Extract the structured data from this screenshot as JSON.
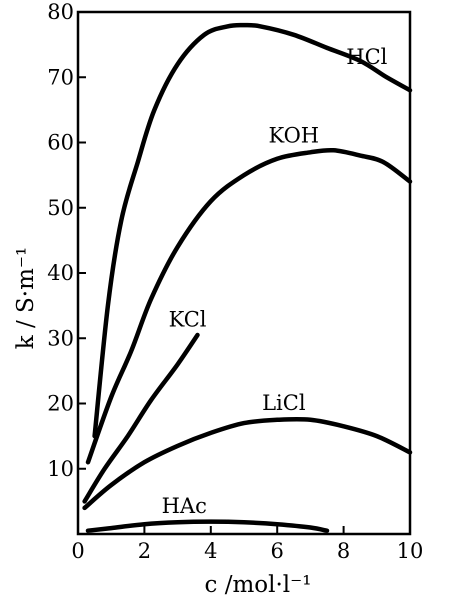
{
  "chart_data": {
    "type": "line",
    "title": "",
    "xlabel": "c /mol·l⁻¹",
    "ylabel": "k / S·m⁻¹",
    "xlim": [
      0,
      10
    ],
    "ylim": [
      0,
      80
    ],
    "x_ticks": [
      "0",
      "2",
      "4",
      "6",
      "8",
      "10"
    ],
    "y_ticks": [
      "10",
      "20",
      "30",
      "40",
      "50",
      "60",
      "70",
      "80"
    ],
    "grid": false,
    "legend": "none (labels placed next to curves)",
    "series": [
      {
        "name": "HCl",
        "points": [
          [
            0.5,
            15
          ],
          [
            0.9,
            35
          ],
          [
            1.3,
            48
          ],
          [
            1.8,
            57
          ],
          [
            2.3,
            65
          ],
          [
            3,
            72
          ],
          [
            3.8,
            76.5
          ],
          [
            4.5,
            77.8
          ],
          [
            5,
            78
          ],
          [
            5.5,
            77.8
          ],
          [
            6.5,
            76.5
          ],
          [
            7.5,
            74.5
          ],
          [
            8.5,
            72.5
          ],
          [
            9.3,
            70
          ],
          [
            10,
            68
          ]
        ]
      },
      {
        "name": "KOH",
        "points": [
          [
            0.3,
            11
          ],
          [
            1,
            21
          ],
          [
            1.6,
            28
          ],
          [
            2.2,
            36
          ],
          [
            3,
            44
          ],
          [
            4,
            51
          ],
          [
            5,
            55
          ],
          [
            6,
            57.5
          ],
          [
            7,
            58.5
          ],
          [
            7.7,
            58.8
          ],
          [
            8.5,
            58
          ],
          [
            9.2,
            57
          ],
          [
            10,
            54
          ]
        ]
      },
      {
        "name": "KCl",
        "points": [
          [
            0.2,
            5
          ],
          [
            0.8,
            10
          ],
          [
            1.5,
            15
          ],
          [
            2.2,
            20.5
          ],
          [
            3,
            26
          ],
          [
            3.6,
            30.5
          ]
        ]
      },
      {
        "name": "LiCl",
        "points": [
          [
            0.2,
            4
          ],
          [
            1,
            7.5
          ],
          [
            2,
            11
          ],
          [
            3,
            13.5
          ],
          [
            4,
            15.5
          ],
          [
            5,
            17
          ],
          [
            6,
            17.5
          ],
          [
            7,
            17.5
          ],
          [
            8,
            16.5
          ],
          [
            9,
            15
          ],
          [
            10,
            12.5
          ]
        ]
      },
      {
        "name": "HAc",
        "points": [
          [
            0.3,
            0.5
          ],
          [
            1,
            0.9
          ],
          [
            2,
            1.5
          ],
          [
            3,
            1.8
          ],
          [
            4,
            1.9
          ],
          [
            5,
            1.8
          ],
          [
            6,
            1.5
          ],
          [
            7,
            1
          ],
          [
            7.5,
            0.5
          ]
        ]
      }
    ],
    "series_labels": [
      {
        "text": "HCl",
        "x": 8.7,
        "y": 72
      },
      {
        "text": "KOH",
        "x": 6.5,
        "y": 60
      },
      {
        "text": "KCl",
        "x": 3.3,
        "y": 31.8
      },
      {
        "text": "LiCl",
        "x": 6.2,
        "y": 19
      },
      {
        "text": "HAc",
        "x": 3.2,
        "y": 3.2
      }
    ]
  }
}
